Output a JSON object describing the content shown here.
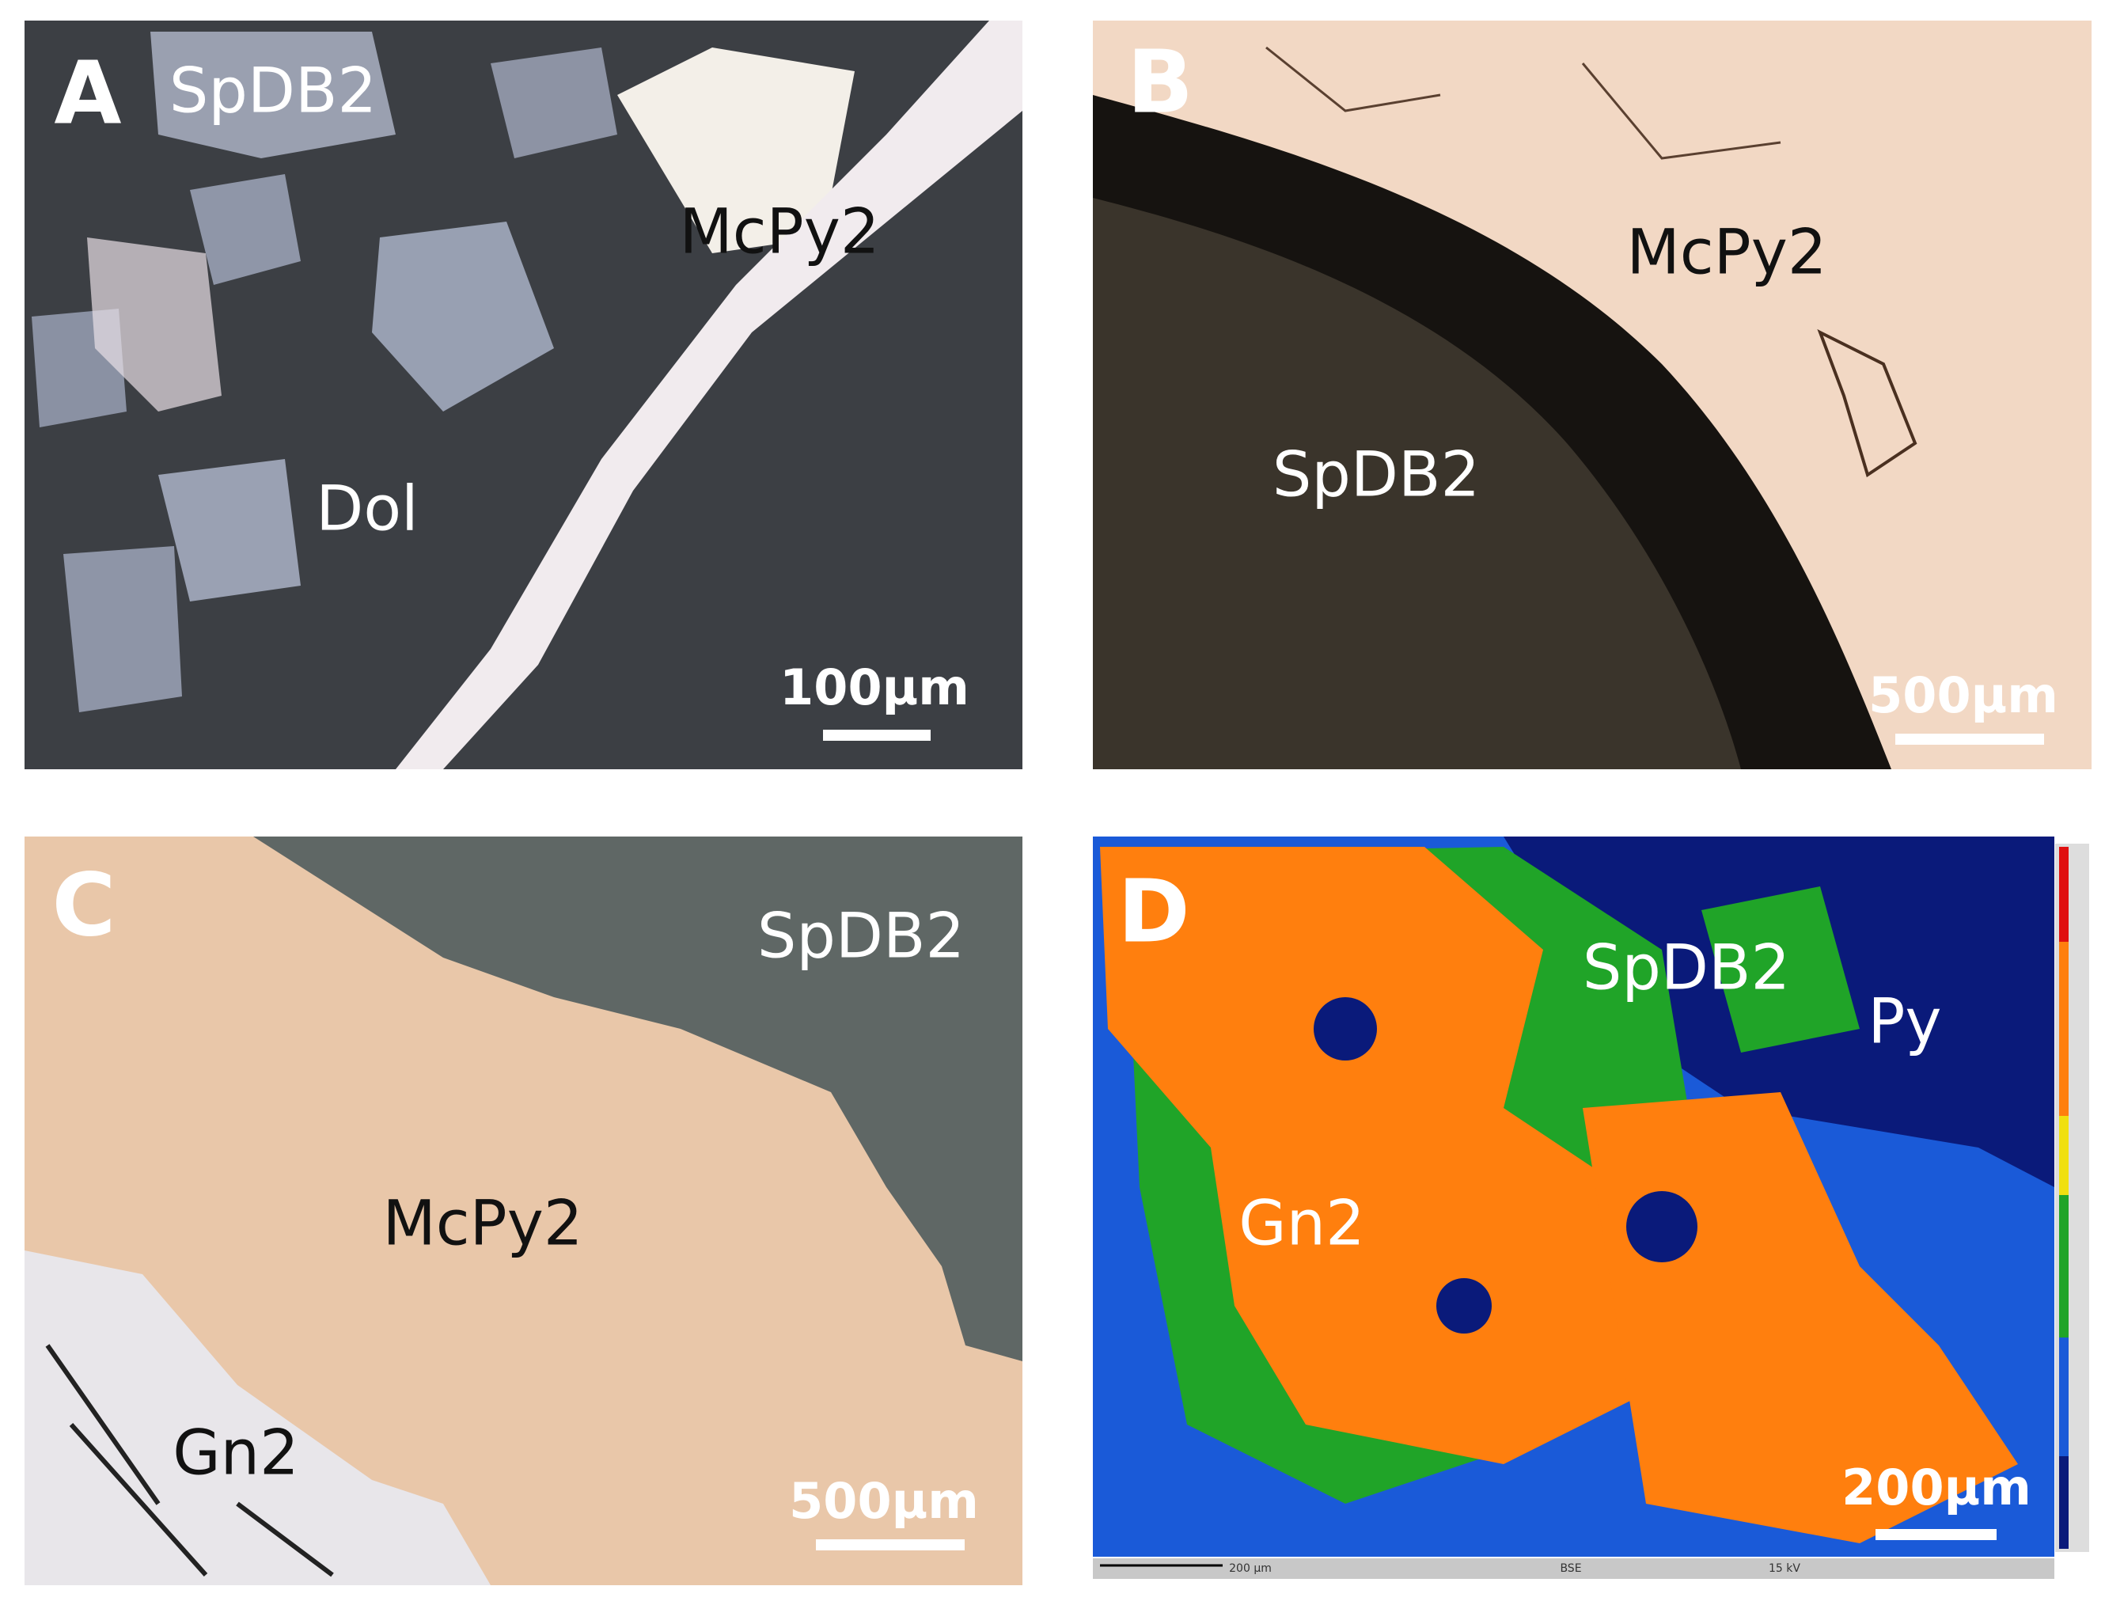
{
  "panels": [
    {
      "letter": "A",
      "labels": [
        "SpDB2",
        "McPy2",
        "Dol"
      ],
      "scale_bar": "100µm"
    },
    {
      "letter": "B",
      "labels": [
        "McPy2",
        "SpDB2"
      ],
      "scale_bar": "500µm"
    },
    {
      "letter": "C",
      "labels": [
        "SpDB2",
        "McPy2",
        "Gn2"
      ],
      "scale_bar": "500µm"
    },
    {
      "letter": "D",
      "labels": [
        "SpDB2",
        "Py",
        "Gn2"
      ],
      "scale_bar": "200µm",
      "footer": [
        "200 µm",
        "BSE",
        "15 kV"
      ]
    }
  ]
}
